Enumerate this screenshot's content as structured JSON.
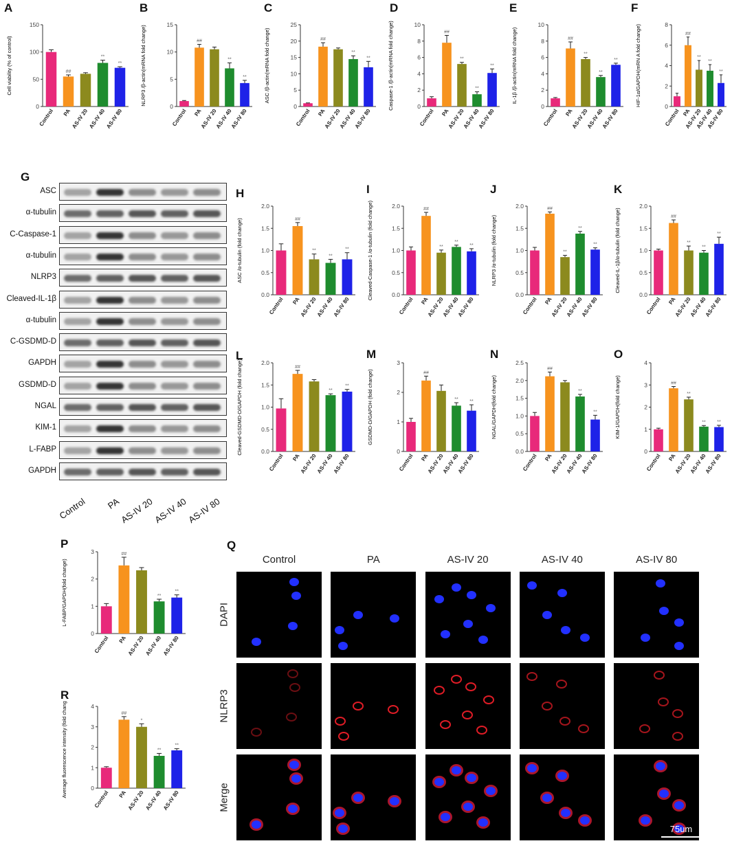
{
  "letters": {
    "A": "A",
    "B": "B",
    "C": "C",
    "D": "D",
    "E": "E",
    "F": "F",
    "G": "G",
    "H": "H",
    "I": "I",
    "J": "J",
    "K": "K",
    "L": "L",
    "M": "M",
    "N": "N",
    "O": "O",
    "P": "P",
    "Q": "Q",
    "R": "R"
  },
  "colors": [
    "#e8297a",
    "#f7931e",
    "#8c8a1e",
    "#1e8c2e",
    "#1e22e8"
  ],
  "chart_data": [
    {
      "id": "A",
      "type": "bar",
      "categories": [
        "Control",
        "PA",
        "AS-IV 20",
        "AS-IV 40",
        "AS-IV 80"
      ],
      "values": [
        100,
        55,
        60,
        80,
        71
      ],
      "errors": [
        4,
        3,
        2,
        5,
        2
      ],
      "marks": [
        "",
        "##",
        "",
        "**",
        "**"
      ],
      "ylabel": "Cell viability (% of control)",
      "ylim": [
        0,
        150
      ],
      "yticks": [
        0,
        50,
        100,
        150
      ]
    },
    {
      "id": "B",
      "type": "bar",
      "categories": [
        "Control",
        "PA",
        "AS-IV 20",
        "AS-IV 40",
        "AS-IV 80"
      ],
      "values": [
        1,
        10.8,
        10.5,
        7,
        4.3
      ],
      "errors": [
        0.1,
        0.6,
        0.4,
        1,
        0.5
      ],
      "marks": [
        "",
        "##",
        "",
        "**",
        "**"
      ],
      "ylabel": "NLRP3 /β-actin(mRNA fold change)",
      "ylim": [
        0,
        15
      ],
      "yticks": [
        0,
        5,
        10,
        15
      ]
    },
    {
      "id": "C",
      "type": "bar",
      "categories": [
        "Control",
        "PA",
        "AS-IV 20",
        "AS-IV 40",
        "AS-IV 80"
      ],
      "values": [
        1,
        18.3,
        17.5,
        14.5,
        12
      ],
      "errors": [
        0.1,
        1.2,
        0.4,
        1,
        1.8
      ],
      "marks": [
        "",
        "##",
        "",
        "**",
        "**"
      ],
      "ylabel": "ASC /β-actin(mRNA fold change)",
      "ylim": [
        0,
        25
      ],
      "yticks": [
        0,
        5,
        10,
        15,
        20,
        25
      ]
    },
    {
      "id": "D",
      "type": "bar",
      "categories": [
        "Control",
        "PA",
        "AS-IV 20",
        "AS-IV 40",
        "AS-IV 80"
      ],
      "values": [
        1,
        7.8,
        5.2,
        1.5,
        4.1
      ],
      "errors": [
        0.2,
        0.9,
        0.2,
        0.3,
        0.5
      ],
      "marks": [
        "",
        "##",
        "**",
        "**",
        "**"
      ],
      "ylabel": "Caspase-1 /β-actin(mRNA fold change)",
      "ylim": [
        0,
        10
      ],
      "yticks": [
        0,
        2,
        4,
        6,
        8,
        10
      ]
    },
    {
      "id": "E",
      "type": "bar",
      "categories": [
        "Control",
        "PA",
        "AS-IV 20",
        "AS-IV 40",
        "AS-IV 80"
      ],
      "values": [
        1,
        7.1,
        5.8,
        3.6,
        5.1
      ],
      "errors": [
        0.1,
        0.8,
        0.2,
        0.2,
        0.2
      ],
      "marks": [
        "",
        "##",
        "**",
        "**",
        "**"
      ],
      "ylabel": "IL-1β /β-actin(mRNA fold change)",
      "ylim": [
        0,
        10
      ],
      "yticks": [
        0,
        2,
        4,
        6,
        8,
        10
      ]
    },
    {
      "id": "F",
      "type": "bar",
      "categories": [
        "Control",
        "PA",
        "AS-IV 20",
        "AS-IV 40",
        "AS-IV 80"
      ],
      "values": [
        1,
        6,
        3.6,
        3.5,
        2.3
      ],
      "errors": [
        0.3,
        0.8,
        0.9,
        0.6,
        0.8
      ],
      "marks": [
        "",
        "##",
        "**",
        "**",
        "**"
      ],
      "ylabel": "HIF-1α/GAPDH(mRN A fold change)",
      "ylim": [
        0,
        8
      ],
      "yticks": [
        0,
        2,
        4,
        6,
        8
      ]
    },
    {
      "id": "H",
      "type": "bar",
      "categories": [
        "Control",
        "PA",
        "AS-IV 20",
        "AS-IV 40",
        "AS-IV 80"
      ],
      "values": [
        1,
        1.55,
        0.8,
        0.72,
        0.8
      ],
      "errors": [
        0.15,
        0.08,
        0.12,
        0.08,
        0.15
      ],
      "marks": [
        "",
        "##",
        "**",
        "**",
        "**"
      ],
      "ylabel": "ASC /α-tubulin (fold change)",
      "ylim": [
        0,
        2
      ],
      "yticks": [
        0,
        0.5,
        1.0,
        1.5,
        2.0
      ],
      "ytickLabels": [
        "0.0",
        "0.5",
        "1.0",
        "1.5",
        "2.0"
      ]
    },
    {
      "id": "I",
      "type": "bar",
      "categories": [
        "Control",
        "PA",
        "AS-IV 20",
        "AS-IV 40",
        "AS-IV 80"
      ],
      "values": [
        1,
        1.78,
        0.95,
        1.08,
        0.98
      ],
      "errors": [
        0.08,
        0.08,
        0.06,
        0.04,
        0.06
      ],
      "marks": [
        "",
        "##",
        "**",
        "**",
        "**"
      ],
      "ylabel": "Cleaved-Caspase-1 /α-tubulin (fold change)",
      "ylim": [
        0,
        2
      ],
      "yticks": [
        0,
        0.5,
        1.0,
        1.5,
        2.0
      ],
      "ytickLabels": [
        "0.0",
        "0.5",
        "1.0",
        "1.5",
        "2.0"
      ]
    },
    {
      "id": "J",
      "type": "bar",
      "categories": [
        "Control",
        "PA",
        "AS-IV 20",
        "AS-IV 40",
        "AS-IV 80"
      ],
      "values": [
        1,
        1.83,
        0.85,
        1.38,
        1.02
      ],
      "errors": [
        0.07,
        0.04,
        0.04,
        0.05,
        0.04
      ],
      "marks": [
        "",
        "##",
        "**",
        "**",
        "**"
      ],
      "ylabel": "NLRP3 /α-tubulin (fold change)",
      "ylim": [
        0,
        2
      ],
      "yticks": [
        0,
        0.5,
        1.0,
        1.5,
        2.0
      ],
      "ytickLabels": [
        "0.0",
        "0.5",
        "1.0",
        "1.5",
        "2.0"
      ]
    },
    {
      "id": "K",
      "type": "bar",
      "categories": [
        "Control",
        "PA",
        "AS-IV 20",
        "AS-IV 40",
        "AS-IV 80"
      ],
      "values": [
        1,
        1.62,
        1.0,
        0.95,
        1.15
      ],
      "errors": [
        0.03,
        0.07,
        0.1,
        0.05,
        0.15
      ],
      "marks": [
        "",
        "##",
        "**",
        "**",
        "**"
      ],
      "ylabel": "Cleaved-IL-1β/α-tubulin (fold change)",
      "ylim": [
        0,
        2
      ],
      "yticks": [
        0,
        0.5,
        1.0,
        1.5,
        2.0
      ],
      "ytickLabels": [
        "0.0",
        "0.5",
        "1.0",
        "1.5",
        "2.0"
      ]
    },
    {
      "id": "L",
      "type": "bar",
      "categories": [
        "Control",
        "PA",
        "AS-IV 20",
        "AS-IV 40",
        "AS-IV 80"
      ],
      "values": [
        0.97,
        1.75,
        1.58,
        1.27,
        1.35
      ],
      "errors": [
        0.22,
        0.08,
        0.04,
        0.03,
        0.05
      ],
      "marks": [
        "",
        "##",
        "",
        "**",
        "**"
      ],
      "ylabel": "Cleaved-GSDMD-D/GAPDH (fold change)",
      "ylim": [
        0,
        2
      ],
      "yticks": [
        0,
        0.5,
        1.0,
        1.5,
        2.0
      ],
      "ytickLabels": [
        "0.0",
        "0.5",
        "1.0",
        "1.5",
        "2.0"
      ]
    },
    {
      "id": "M",
      "type": "bar",
      "categories": [
        "Control",
        "PA",
        "AS-IV 20",
        "AS-IV 40",
        "AS-IV 80"
      ],
      "values": [
        1,
        2.4,
        2.05,
        1.55,
        1.38
      ],
      "errors": [
        0.12,
        0.15,
        0.2,
        0.1,
        0.2
      ],
      "marks": [
        "",
        "##",
        "",
        "**",
        "**"
      ],
      "ylabel": "GSDMD-D/GAPDH (fold change)",
      "ylim": [
        0,
        3
      ],
      "yticks": [
        0,
        1,
        2,
        3
      ]
    },
    {
      "id": "N",
      "type": "bar",
      "categories": [
        "Control",
        "PA",
        "AS-IV 20",
        "AS-IV 40",
        "AS-IV 80"
      ],
      "values": [
        1,
        2.12,
        1.95,
        1.55,
        0.9
      ],
      "errors": [
        0.1,
        0.12,
        0.05,
        0.06,
        0.12
      ],
      "marks": [
        "",
        "##",
        "",
        "**",
        "**"
      ],
      "ylabel": "NGAL/GAPDH(fold change)",
      "ylim": [
        0,
        2.5
      ],
      "yticks": [
        0,
        0.5,
        1.0,
        1.5,
        2.0,
        2.5
      ],
      "ytickLabels": [
        "0.0",
        "0.5",
        "1.0",
        "1.5",
        "2.0",
        "2.5"
      ]
    },
    {
      "id": "O",
      "type": "bar",
      "categories": [
        "Control",
        "PA",
        "AS-IV 20",
        "AS-IV 40",
        "AS-IV 80"
      ],
      "values": [
        1,
        2.85,
        2.35,
        1.12,
        1.1
      ],
      "errors": [
        0.05,
        0.08,
        0.1,
        0.05,
        0.08
      ],
      "marks": [
        "",
        "##",
        "**",
        "**",
        "**"
      ],
      "ylabel": "KIM-1/GAPDH(fold change)",
      "ylim": [
        0,
        4
      ],
      "yticks": [
        0,
        1,
        2,
        3,
        4
      ]
    },
    {
      "id": "P",
      "type": "bar",
      "categories": [
        "Control",
        "PA",
        "AS-IV 20",
        "AS-IV 40",
        "AS-IV 80"
      ],
      "values": [
        1,
        2.5,
        2.32,
        1.18,
        1.32
      ],
      "errors": [
        0.1,
        0.3,
        0.1,
        0.08,
        0.1
      ],
      "marks": [
        "",
        "##",
        "",
        "**",
        "**"
      ],
      "ylabel": "L-FABP/GAPDH(fold change)",
      "ylim": [
        0,
        3
      ],
      "yticks": [
        0,
        1,
        2,
        3
      ]
    },
    {
      "id": "R",
      "type": "bar",
      "categories": [
        "Control",
        "PA",
        "AS-IV 20",
        "AS-IV 40",
        "AS-IV 80"
      ],
      "values": [
        1,
        3.35,
        3.0,
        1.58,
        1.85
      ],
      "errors": [
        0.05,
        0.15,
        0.15,
        0.12,
        0.08
      ],
      "marks": [
        "",
        "##",
        "*",
        "**",
        "**"
      ],
      "ylabel": "Average fluorescence intensity (fold change)",
      "ylim": [
        0,
        4
      ],
      "yticks": [
        0,
        1,
        2,
        3,
        4
      ]
    }
  ],
  "western": {
    "rows": [
      "ASC",
      "α-tubulin",
      "C-Caspase-1",
      "α-tubulin",
      "NLRP3",
      "Cleaved-IL-1β",
      "α-tubulin",
      "C-GSDMD-D",
      "GAPDH",
      "GSDMD-D",
      "NGAL",
      "KIM-1",
      "L-FABP",
      "GAPDH"
    ],
    "lanes": [
      "Control",
      "PA",
      "AS-IV 20",
      "AS-IV 40",
      "AS-IV 80"
    ]
  },
  "immuno": {
    "columns": [
      "Control",
      "PA",
      "AS-IV 20",
      "AS-IV 40",
      "AS-IV 80"
    ],
    "rows": [
      "DAPI",
      "NLRP3",
      "Merge"
    ],
    "scalebar": "75um"
  }
}
